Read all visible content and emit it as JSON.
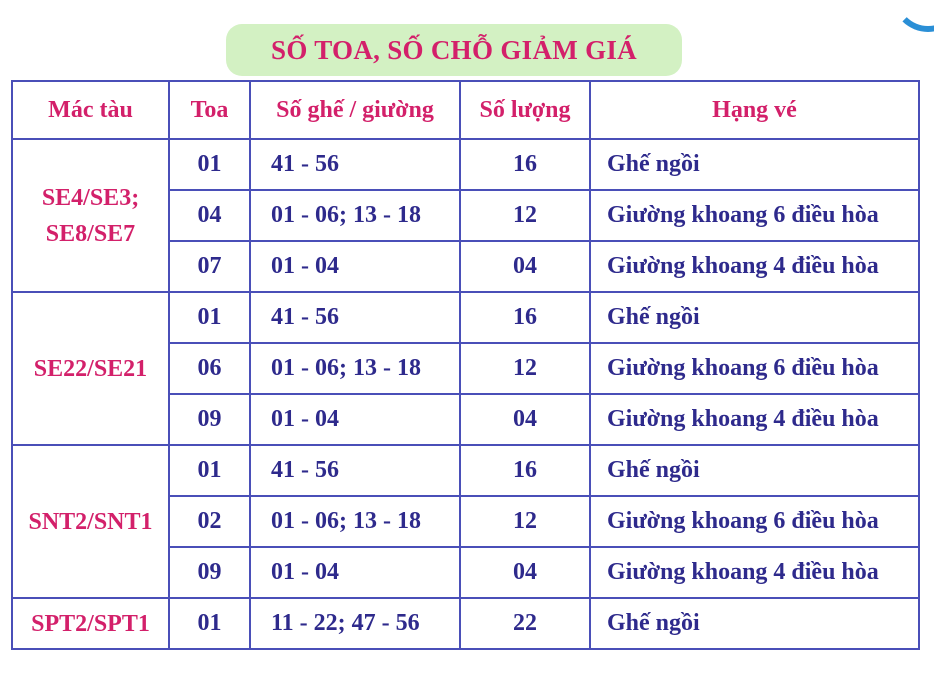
{
  "title": "SỐ TOA, SỐ CHỖ GIẢM GIÁ",
  "table": {
    "headers": {
      "train": "Mác tàu",
      "toa": "Toa",
      "seats": "Số ghế / giường",
      "qty": "Số lượng",
      "class": "Hạng vé"
    },
    "groups": [
      {
        "train_line1": "SE4/SE3;",
        "train_line2": "SE8/SE7",
        "rows": [
          {
            "toa": "01",
            "seats": "41 - 56",
            "qty": "16",
            "class": "Ghế ngồi"
          },
          {
            "toa": "04",
            "seats": "01 - 06; 13 - 18",
            "qty": "12",
            "class": "Giường khoang 6 điều hòa"
          },
          {
            "toa": "07",
            "seats": "01 - 04",
            "qty": "04",
            "class": "Giường khoang 4 điều hòa"
          }
        ]
      },
      {
        "train_line1": "SE22/SE21",
        "train_line2": "",
        "rows": [
          {
            "toa": "01",
            "seats": "41 - 56",
            "qty": "16",
            "class": "Ghế ngồi"
          },
          {
            "toa": "06",
            "seats": "01 - 06; 13 - 18",
            "qty": "12",
            "class": "Giường khoang 6 điều hòa"
          },
          {
            "toa": "09",
            "seats": "01 - 04",
            "qty": "04",
            "class": "Giường khoang 4 điều hòa"
          }
        ]
      },
      {
        "train_line1": "SNT2/SNT1",
        "train_line2": "",
        "rows": [
          {
            "toa": "01",
            "seats": "41 - 56",
            "qty": "16",
            "class": "Ghế ngồi"
          },
          {
            "toa": "02",
            "seats": "01 - 06; 13 - 18",
            "qty": "12",
            "class": "Giường khoang 6 điều hòa"
          },
          {
            "toa": "09",
            "seats": "01 - 04",
            "qty": "04",
            "class": "Giường khoang 4 điều hòa"
          }
        ]
      },
      {
        "train_line1": "SPT2/SPT1",
        "train_line2": "",
        "rows": [
          {
            "toa": "01",
            "seats": "11 - 22; 47 - 56",
            "qty": "22",
            "class": "Ghế ngồi"
          }
        ]
      }
    ]
  }
}
